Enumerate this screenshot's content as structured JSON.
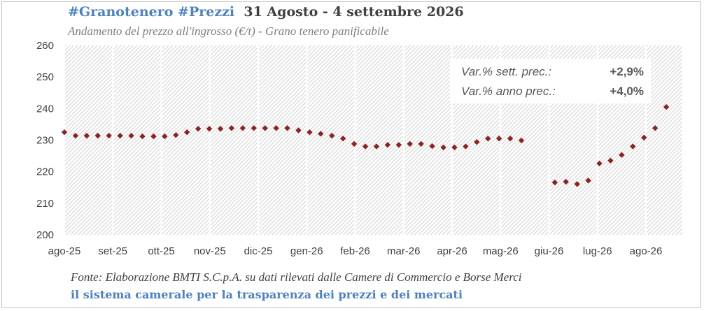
{
  "header": {
    "title_tags": "#Granotenero #Prezzi",
    "title_period": "31 Agosto  - 4 settembre 2026",
    "subtitle": "Andamento del prezzo all'ingrosso (€/t) - Grano tenero panificabile"
  },
  "variation_box": {
    "rows": [
      {
        "label": "Var.% sett. prec.:",
        "value": "+2,9%"
      },
      {
        "label": "Var.% anno prec.:",
        "value": "+4,0%"
      }
    ]
  },
  "footer": {
    "source": "Fonte: Elaborazione BMTI S.C.p.A. su dati rilevati dalle Camere di Commercio e Borse Merci",
    "tagline": "il sistema camerale per la trasparenza dei prezzi e dei mercati"
  },
  "colors": {
    "marker": "#8b2323",
    "title_accent": "#4f81bd",
    "hatch": "#d4d4d4"
  },
  "chart_data": {
    "type": "scatter",
    "title": "",
    "xlabel": "",
    "ylabel": "",
    "ylim": [
      200,
      260
    ],
    "yticks": [
      200,
      210,
      220,
      230,
      240,
      250,
      260
    ],
    "xtick_labels": [
      "ago-25",
      "set-25",
      "ott-25",
      "nov-25",
      "dic-25",
      "gen-26",
      "feb-26",
      "mar-26",
      "apr-26",
      "mag-26",
      "giu-26",
      "lug-26",
      "ago-26"
    ],
    "grid": "vertical",
    "series": [
      {
        "values": [
          {
            "x": 0.0,
            "y": 232.5
          },
          {
            "x": 0.23,
            "y": 231.4
          },
          {
            "x": 0.46,
            "y": 231.4
          },
          {
            "x": 0.69,
            "y": 231.4
          },
          {
            "x": 0.92,
            "y": 231.4
          },
          {
            "x": 1.15,
            "y": 231.4
          },
          {
            "x": 1.38,
            "y": 231.4
          },
          {
            "x": 1.61,
            "y": 231.2
          },
          {
            "x": 1.84,
            "y": 231.2
          },
          {
            "x": 2.07,
            "y": 231.2
          },
          {
            "x": 2.3,
            "y": 231.6
          },
          {
            "x": 2.53,
            "y": 232.5
          },
          {
            "x": 2.76,
            "y": 233.6
          },
          {
            "x": 2.99,
            "y": 233.6
          },
          {
            "x": 3.22,
            "y": 233.6
          },
          {
            "x": 3.45,
            "y": 233.8
          },
          {
            "x": 3.68,
            "y": 233.8
          },
          {
            "x": 3.91,
            "y": 233.8
          },
          {
            "x": 4.14,
            "y": 233.8
          },
          {
            "x": 4.37,
            "y": 233.8
          },
          {
            "x": 4.6,
            "y": 233.8
          },
          {
            "x": 4.83,
            "y": 233.1
          },
          {
            "x": 5.06,
            "y": 232.5
          },
          {
            "x": 5.29,
            "y": 232.0
          },
          {
            "x": 5.52,
            "y": 231.4
          },
          {
            "x": 5.75,
            "y": 230.5
          },
          {
            "x": 5.98,
            "y": 228.8
          },
          {
            "x": 6.21,
            "y": 228.0
          },
          {
            "x": 6.44,
            "y": 228.0
          },
          {
            "x": 6.67,
            "y": 228.5
          },
          {
            "x": 6.9,
            "y": 228.5
          },
          {
            "x": 7.13,
            "y": 228.8
          },
          {
            "x": 7.36,
            "y": 228.8
          },
          {
            "x": 7.59,
            "y": 228.1
          },
          {
            "x": 7.82,
            "y": 227.7
          },
          {
            "x": 8.05,
            "y": 227.7
          },
          {
            "x": 8.28,
            "y": 228.0
          },
          {
            "x": 8.51,
            "y": 229.4
          },
          {
            "x": 8.74,
            "y": 230.5
          },
          {
            "x": 8.97,
            "y": 230.5
          },
          {
            "x": 9.2,
            "y": 230.5
          },
          {
            "x": 9.43,
            "y": 229.9
          },
          {
            "x": 10.12,
            "y": 216.6
          },
          {
            "x": 10.35,
            "y": 216.8
          },
          {
            "x": 10.58,
            "y": 216.1
          },
          {
            "x": 10.81,
            "y": 217.2
          },
          {
            "x": 11.04,
            "y": 222.6
          },
          {
            "x": 11.27,
            "y": 223.5
          },
          {
            "x": 11.5,
            "y": 225.3
          },
          {
            "x": 11.73,
            "y": 228.0
          },
          {
            "x": 11.96,
            "y": 230.8
          },
          {
            "x": 12.19,
            "y": 233.8
          },
          {
            "x": 12.42,
            "y": 240.5
          }
        ]
      }
    ]
  }
}
